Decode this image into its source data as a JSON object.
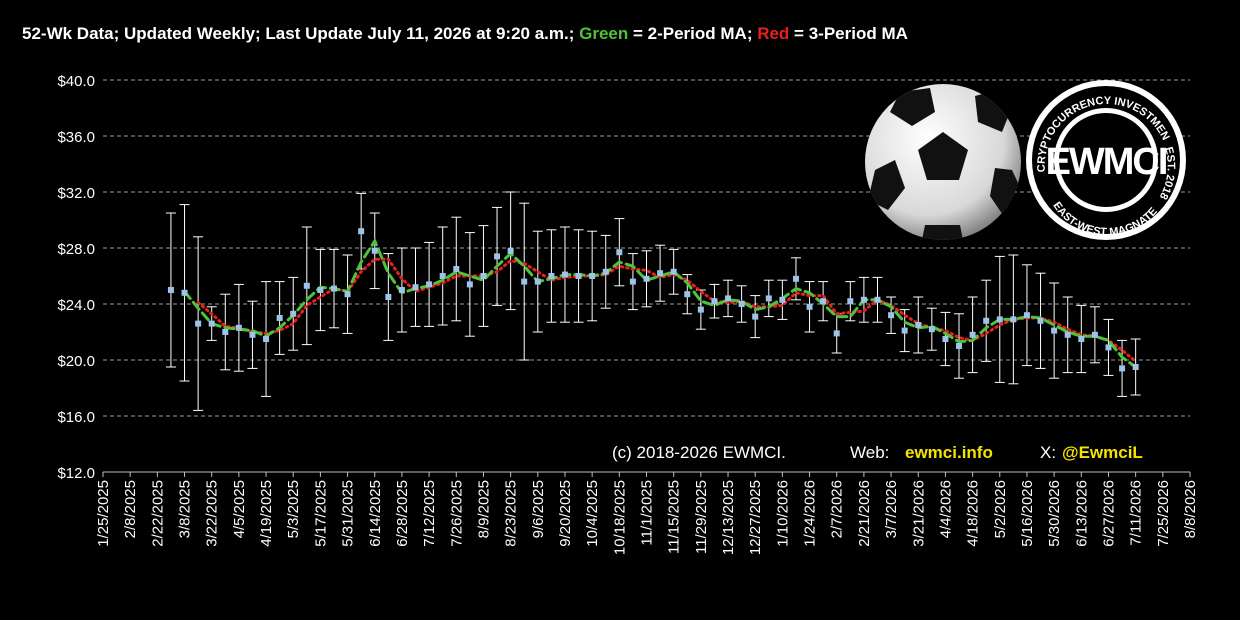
{
  "chart_data": {
    "type": "errorbar",
    "title_parts": [
      {
        "text": "52-Wk Data; Updated Weekly; Last Update July 11, 2026 at 9:20 a.m.; ",
        "color": "#ffffff"
      },
      {
        "text": "Green",
        "color": "#4fc23a"
      },
      {
        "text": " = 2-Period MA; ",
        "color": "#ffffff"
      },
      {
        "text": "Red",
        "color": "#e8201e"
      },
      {
        "text": " = 3-Period MA",
        "color": "#ffffff"
      }
    ],
    "x": [
      "3/1/2025",
      "3/8/2025",
      "3/15/2025",
      "3/22/2025",
      "3/29/2025",
      "4/5/2025",
      "4/12/2025",
      "4/19/2025",
      "4/26/2025",
      "5/3/2025",
      "5/10/2025",
      "5/17/2025",
      "5/24/2025",
      "5/31/2025",
      "6/7/2025",
      "6/14/2025",
      "6/21/2025",
      "6/28/2025",
      "7/5/2025",
      "7/12/2025",
      "7/19/2025",
      "7/26/2025",
      "8/2/2025",
      "8/9/2025",
      "8/16/2025",
      "8/23/2025",
      "8/30/2025",
      "9/6/2025",
      "9/13/2025",
      "9/20/2025",
      "9/27/2025",
      "10/4/2025",
      "10/11/2025",
      "10/18/2025",
      "10/25/2025",
      "11/1/2025",
      "11/8/2025",
      "11/15/2025",
      "11/22/2025",
      "11/29/2025",
      "12/6/2025",
      "12/13/2025",
      "12/20/2025",
      "12/27/2025",
      "1/3/2026",
      "1/10/2026",
      "1/17/2026",
      "1/24/2026",
      "1/31/2026",
      "2/7/2026",
      "2/14/2026",
      "2/21/2026",
      "2/28/2026",
      "3/7/2026",
      "3/14/2026",
      "3/21/2026",
      "3/28/2026",
      "4/4/2026",
      "4/11/2026",
      "4/18/2026",
      "4/25/2026",
      "5/2/2026",
      "5/9/2026",
      "5/16/2026",
      "5/23/2026",
      "5/30/2026",
      "6/6/2026",
      "6/13/2026",
      "6/20/2026",
      "6/27/2026",
      "7/4/2026",
      "7/11/2026"
    ],
    "values": [
      25.0,
      24.8,
      22.6,
      22.6,
      22.0,
      22.3,
      21.8,
      21.5,
      23.0,
      23.3,
      25.3,
      25.0,
      25.1,
      24.7,
      29.2,
      27.8,
      24.5,
      25.0,
      25.2,
      25.4,
      26.0,
      26.5,
      25.4,
      26.0,
      27.4,
      27.8,
      25.6,
      25.6,
      26.0,
      26.1,
      26.0,
      26.0,
      26.3,
      27.7,
      25.6,
      25.8,
      26.2,
      26.3,
      24.7,
      23.6,
      24.2,
      24.4,
      24.0,
      23.1,
      24.4,
      24.3,
      25.8,
      23.8,
      24.2,
      21.9,
      24.2,
      24.3,
      24.3,
      23.2,
      22.1,
      22.5,
      22.2,
      21.5,
      21.0,
      21.8,
      22.8,
      22.9,
      22.9,
      23.2,
      22.8,
      22.1,
      21.8,
      21.5,
      21.8,
      20.9,
      19.4,
      19.5
    ],
    "errors": [
      5.5,
      6.3,
      6.2,
      1.2,
      2.7,
      3.1,
      2.4,
      4.1,
      2.6,
      2.6,
      4.2,
      2.9,
      2.8,
      2.8,
      2.7,
      2.7,
      3.1,
      3.0,
      2.8,
      3.0,
      3.5,
      3.7,
      3.7,
      3.6,
      3.5,
      4.2,
      5.6,
      3.6,
      3.3,
      3.4,
      3.3,
      3.2,
      2.6,
      2.4,
      2.0,
      2.0,
      2.0,
      1.6,
      1.4,
      1.4,
      1.2,
      1.3,
      1.3,
      1.5,
      1.3,
      1.4,
      1.5,
      1.8,
      1.4,
      1.4,
      1.4,
      1.6,
      1.6,
      1.3,
      1.5,
      2.0,
      1.5,
      1.9,
      2.3,
      2.7,
      2.9,
      4.5,
      4.6,
      3.6,
      3.4,
      3.4,
      2.7,
      2.4,
      2.0,
      2.0,
      2.0,
      2.0
    ],
    "color": "#9dc3e6",
    "ma2": {
      "color": "#4fc23a",
      "values": [
        null,
        24.9,
        23.7,
        22.6,
        22.3,
        22.2,
        22.1,
        21.7,
        22.3,
        23.2,
        24.3,
        25.2,
        25.1,
        24.9,
        27.0,
        28.5,
        26.2,
        24.8,
        25.1,
        25.3,
        25.7,
        26.3,
        26.0,
        25.7,
        26.7,
        27.6,
        26.7,
        25.6,
        25.8,
        26.1,
        26.1,
        26.0,
        26.2,
        27.0,
        26.7,
        25.7,
        26.0,
        26.3,
        25.5,
        24.2,
        23.9,
        24.3,
        24.2,
        23.6,
        23.8,
        24.4,
        25.1,
        24.8,
        24.0,
        23.1,
        23.1,
        24.3,
        24.3,
        23.8,
        22.7,
        22.3,
        22.4,
        21.9,
        21.3,
        21.4,
        22.3,
        22.9,
        22.9,
        23.1,
        23.0,
        22.5,
        22.0,
        21.7,
        21.7,
        21.4,
        20.2,
        19.5
      ]
    },
    "ma3": {
      "color": "#e8201e",
      "values": [
        null,
        null,
        24.1,
        23.3,
        22.4,
        22.3,
        22.0,
        21.9,
        22.1,
        22.6,
        23.9,
        24.5,
        25.1,
        24.9,
        26.3,
        27.2,
        27.2,
        25.8,
        24.9,
        25.2,
        25.5,
        26.0,
        26.0,
        26.0,
        26.3,
        27.1,
        26.9,
        26.3,
        25.7,
        25.9,
        26.0,
        26.0,
        26.1,
        26.7,
        26.5,
        26.4,
        25.9,
        26.1,
        25.7,
        24.9,
        24.2,
        24.1,
        24.2,
        23.8,
        23.8,
        23.9,
        24.8,
        24.6,
        24.6,
        23.3,
        23.4,
        23.5,
        24.3,
        23.9,
        23.2,
        22.6,
        22.3,
        22.1,
        21.6,
        21.4,
        21.9,
        22.5,
        22.9,
        23.0,
        23.0,
        22.7,
        22.2,
        21.8,
        21.7,
        21.4,
        20.7,
        19.9
      ]
    },
    "xlim": [
      "1/25/2025",
      "8/8/2026"
    ],
    "xticks": [
      "1/25/2025",
      "2/8/2025",
      "2/22/2025",
      "3/8/2025",
      "3/22/2025",
      "4/5/2025",
      "4/19/2025",
      "5/3/2025",
      "5/17/2025",
      "5/31/2025",
      "6/14/2025",
      "6/28/2025",
      "7/12/2025",
      "7/26/2025",
      "8/9/2025",
      "8/23/2025",
      "9/6/2025",
      "9/20/2025",
      "10/4/2025",
      "10/18/2025",
      "11/1/2025",
      "11/15/2025",
      "11/29/2025",
      "12/13/2025",
      "12/27/2025",
      "1/10/2026",
      "1/24/2026",
      "2/7/2026",
      "2/21/2026",
      "3/7/2026",
      "3/21/2026",
      "4/4/2026",
      "4/18/2026",
      "5/2/2026",
      "5/16/2026",
      "5/30/2026",
      "6/13/2026",
      "6/27/2026",
      "7/11/2026",
      "7/25/2026",
      "8/8/2026"
    ],
    "ylim": [
      12,
      40
    ],
    "yticks": [
      {
        "value": 12,
        "label": "$12.0"
      },
      {
        "value": 16,
        "label": "$16.0"
      },
      {
        "value": 20,
        "label": "$20.0"
      },
      {
        "value": 24,
        "label": "$24.0"
      },
      {
        "value": 28,
        "label": "$28.0"
      },
      {
        "value": 32,
        "label": "$32.0"
      },
      {
        "value": 36,
        "label": "$36.0"
      },
      {
        "value": 40,
        "label": "$40.0"
      }
    ],
    "grid": true,
    "footer": {
      "copyright": "(c) 2018-2026 EWMCI.",
      "web_label": "Web:",
      "web": "ewmci.info",
      "x_label": "X:",
      "x_handle": "@EwmciL"
    },
    "logo": {
      "center": "EWMCI",
      "ring_top": "CRYPTOCURRENCY INVESTMENTS",
      "ring_right": "EST. 2018",
      "ring_bottom": "EAST-WEST MAGNATE"
    }
  }
}
